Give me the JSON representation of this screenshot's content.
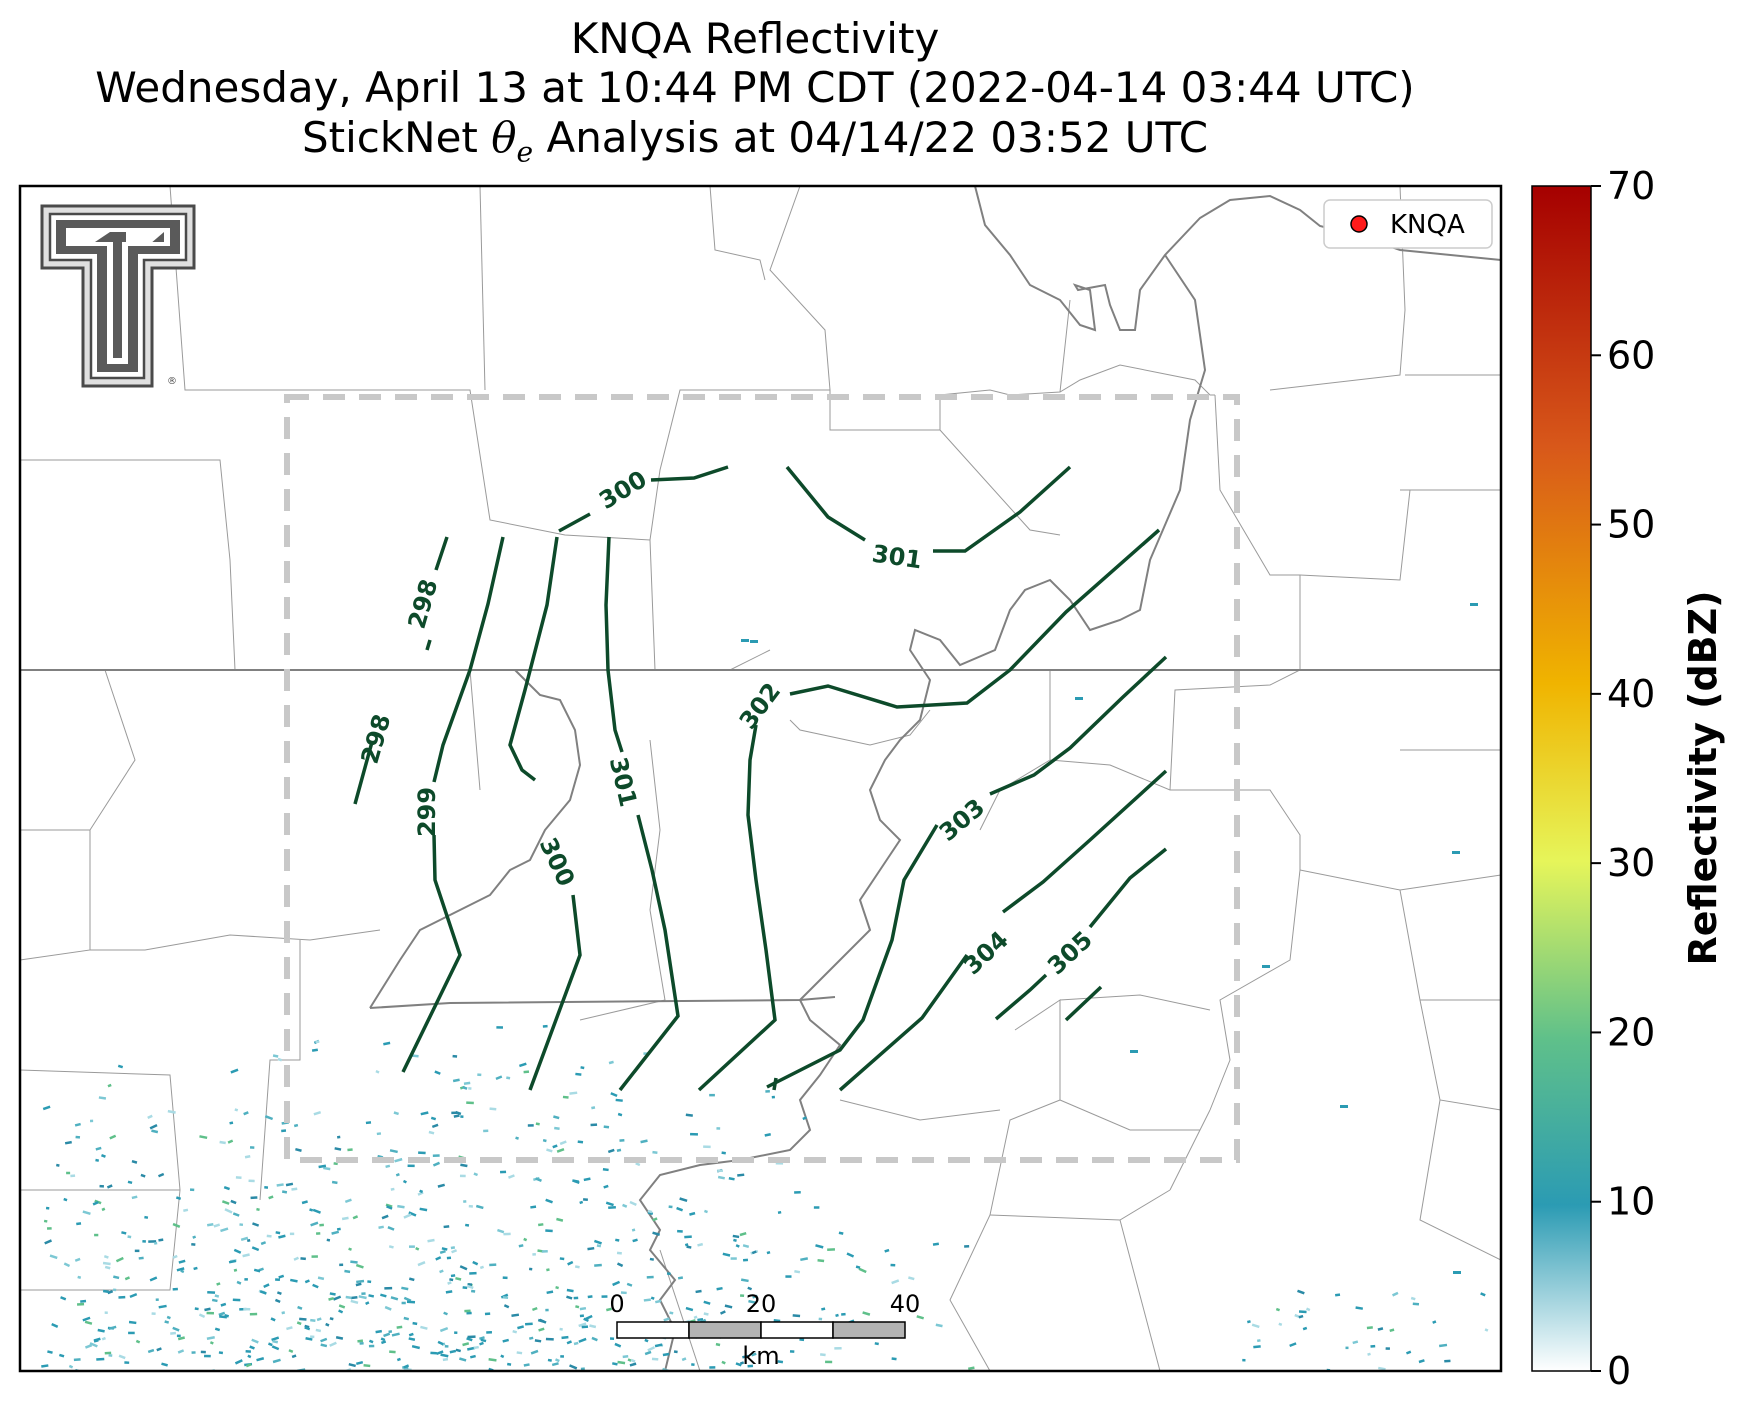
{
  "title": {
    "line1": "KNQA Reflectivity",
    "line2": "Wednesday, April 13 at 10:44 PM CDT (2022-04-14 03:44 UTC)",
    "line3_prefix": "StickNet ",
    "line3_symbol": "θ",
    "line3_sub": "e",
    "line3_suffix": " Analysis at 04/14/22 03:52 UTC"
  },
  "legend": {
    "label": "KNQA",
    "marker_color": "#ff1a1a"
  },
  "colorbar": {
    "label": "Reflectivity (dBZ)",
    "ticks": [
      "0",
      "10",
      "20",
      "30",
      "40",
      "50",
      "60",
      "70"
    ],
    "min": 0,
    "max": 70,
    "colors": [
      "#ffffff",
      "#2b9bb3",
      "#5fc08a",
      "#e6f55a",
      "#f0b400",
      "#d8581a",
      "#a50000"
    ]
  },
  "scalebar": {
    "ticks": [
      "0",
      "20",
      "40"
    ],
    "unit": "km"
  },
  "logo": {
    "name": "Texas Tech Double T",
    "mark": "®"
  },
  "contours": {
    "color": "#0d4a2a",
    "labels": [
      "298",
      "298",
      "299",
      "300",
      "300",
      "301",
      "301",
      "302",
      "303",
      "304",
      "305"
    ]
  },
  "colors": {
    "analysis_box": "#c8c8c8",
    "county_lines": "#9a9a9a",
    "state_lines": "#808080",
    "reflectivity_echo": "#2b9bb3"
  }
}
